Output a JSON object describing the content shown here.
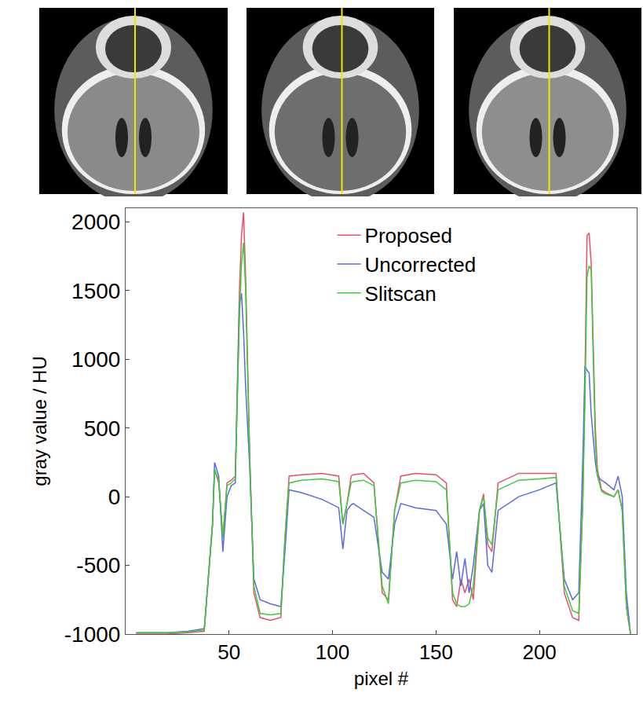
{
  "chart_data": {
    "type": "line",
    "x_label": "pixel #",
    "y_label": "gray value / HU",
    "xlim": [
      0,
      247
    ],
    "xticks": [
      50,
      100,
      150,
      200
    ],
    "ylim": [
      -1000,
      2100
    ],
    "yticks": [
      -1000,
      -500,
      0,
      500,
      1000,
      1500,
      2000
    ],
    "grid": false,
    "legend": "top",
    "x": [
      5,
      20,
      30,
      38,
      42,
      43,
      45,
      47,
      49,
      51,
      53,
      55,
      56,
      57,
      58,
      60,
      62,
      65,
      70,
      75,
      77,
      79,
      85,
      95,
      103,
      105,
      107,
      109,
      110,
      115,
      120,
      124,
      127,
      130,
      133,
      140,
      150,
      155,
      158,
      160,
      162,
      164,
      166,
      168,
      171,
      173,
      175,
      177,
      180,
      190,
      200,
      208,
      212,
      216,
      219,
      221,
      222,
      223,
      224,
      225,
      226,
      227,
      228,
      230,
      232,
      236,
      238,
      240,
      242,
      244
    ],
    "series": [
      {
        "name": "Proposed",
        "color": "#e8506a",
        "values": [
          -1000,
          -1000,
          -990,
          -980,
          -200,
          200,
          100,
          -300,
          100,
          120,
          150,
          1500,
          1900,
          2070,
          1600,
          300,
          -700,
          -880,
          -900,
          -880,
          -300,
          150,
          160,
          170,
          150,
          -200,
          -50,
          150,
          160,
          170,
          100,
          -700,
          -750,
          -100,
          150,
          170,
          160,
          100,
          -750,
          -800,
          -600,
          -700,
          -600,
          -750,
          -100,
          20,
          -350,
          -400,
          100,
          170,
          170,
          170,
          -700,
          -880,
          -900,
          0,
          900,
          1900,
          1920,
          1700,
          1100,
          500,
          200,
          50,
          30,
          0,
          50,
          -100,
          -800,
          -1000
        ]
      },
      {
        "name": "Uncorrected",
        "color": "#5a6ae0",
        "values": [
          -990,
          -990,
          -980,
          -960,
          -200,
          250,
          150,
          -400,
          0,
          80,
          100,
          1400,
          1480,
          1200,
          800,
          200,
          -600,
          -750,
          -780,
          -800,
          -400,
          50,
          30,
          -20,
          -80,
          -380,
          -100,
          -60,
          -50,
          -100,
          -150,
          -550,
          -600,
          -200,
          -50,
          -80,
          -100,
          -200,
          -600,
          -400,
          -650,
          -450,
          -700,
          -500,
          -100,
          -50,
          -500,
          -550,
          -100,
          0,
          50,
          100,
          -600,
          -750,
          -700,
          300,
          950,
          920,
          900,
          600,
          400,
          250,
          150,
          120,
          100,
          50,
          150,
          0,
          -700,
          -1000
        ]
      },
      {
        "name": "Slitscan",
        "color": "#3ccc3c",
        "values": [
          -990,
          -990,
          -985,
          -970,
          -200,
          200,
          120,
          -300,
          80,
          100,
          130,
          1300,
          1700,
          1850,
          1500,
          250,
          -650,
          -850,
          -860,
          -850,
          -300,
          100,
          120,
          130,
          110,
          -200,
          -50,
          100,
          110,
          120,
          80,
          -650,
          -780,
          -100,
          100,
          120,
          110,
          50,
          -700,
          -780,
          -800,
          -800,
          -780,
          -650,
          -100,
          0,
          -300,
          -350,
          50,
          120,
          130,
          140,
          -650,
          -830,
          -850,
          0,
          700,
          1600,
          1680,
          1650,
          1000,
          400,
          150,
          40,
          20,
          0,
          50,
          -100,
          -800,
          -1000
        ]
      }
    ]
  }
}
